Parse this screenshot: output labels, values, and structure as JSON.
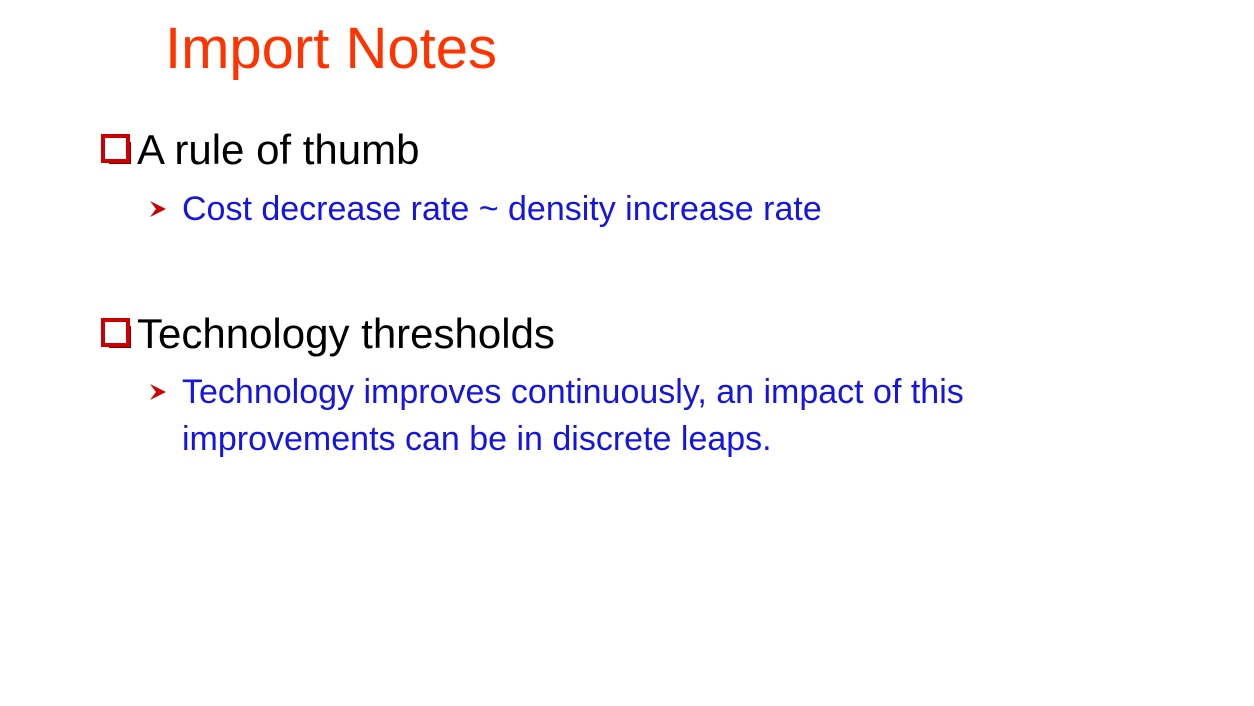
{
  "slide": {
    "title": "Import Notes",
    "bullets": [
      {
        "text": "A rule of thumb",
        "sub": [
          {
            "lines": [
              "Cost decrease rate ~ density increase rate"
            ]
          }
        ]
      },
      {
        "text": "Technology thresholds",
        "sub": [
          {
            "lines": [
              "Technology improves continuously, an impact of this",
              "improvements can be in discrete leaps."
            ]
          }
        ]
      }
    ]
  },
  "colors": {
    "title": "#ff3300",
    "bullet_text": "#000000",
    "sub_text": "#1414e6",
    "box_bullet": "#cc0000",
    "arrow_bullet": "#cc0000"
  },
  "icons": {
    "bullet": "square-box-icon",
    "sub_bullet": "arrowhead-icon"
  }
}
